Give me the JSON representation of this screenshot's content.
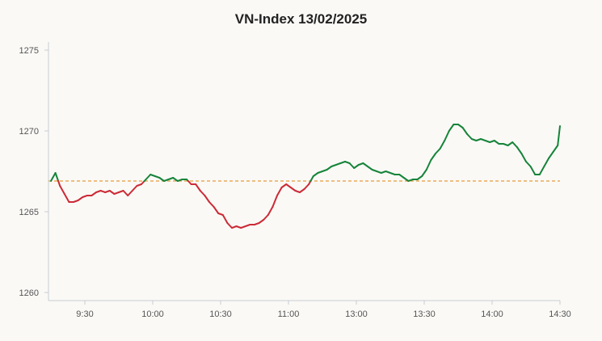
{
  "chart_data": {
    "type": "line",
    "title": "VN-Index 13/02/2025",
    "xlabel": "",
    "ylabel": "",
    "ylim": [
      1259.5,
      1275.5
    ],
    "y_ticks": [
      1260,
      1265,
      1270,
      1275
    ],
    "x_ticks": [
      "9:30",
      "10:00",
      "10:30",
      "11:00",
      "13:00",
      "13:30",
      "14:00",
      "14:30"
    ],
    "reference_value": 1266.9,
    "reference_style": "dashed",
    "colors": {
      "above": "#16843a",
      "below": "#cc2b36",
      "reference": "#e79a3a",
      "axis": "#c8cdd2"
    },
    "grid": false,
    "legend": "none",
    "x": [
      "9:15",
      "9:17",
      "9:19",
      "9:21",
      "9:23",
      "9:25",
      "9:27",
      "9:29",
      "9:31",
      "9:33",
      "9:35",
      "9:37",
      "9:39",
      "9:41",
      "9:43",
      "9:45",
      "9:47",
      "9:49",
      "9:51",
      "9:53",
      "9:55",
      "9:57",
      "9:59",
      "10:01",
      "10:03",
      "10:05",
      "10:07",
      "10:09",
      "10:11",
      "10:13",
      "10:15",
      "10:17",
      "10:19",
      "10:21",
      "10:23",
      "10:25",
      "10:27",
      "10:29",
      "10:31",
      "10:33",
      "10:35",
      "10:37",
      "10:39",
      "10:41",
      "10:43",
      "10:45",
      "10:47",
      "10:49",
      "10:51",
      "10:53",
      "10:55",
      "10:57",
      "10:59",
      "11:01",
      "11:03",
      "11:05",
      "11:07",
      "11:09",
      "11:11",
      "11:13",
      "11:15",
      "11:17",
      "11:19",
      "11:21",
      "11:23",
      "11:25",
      "11:27",
      "11:29",
      "13:01",
      "13:03",
      "13:05",
      "13:07",
      "13:09",
      "13:11",
      "13:13",
      "13:15",
      "13:17",
      "13:19",
      "13:21",
      "13:23",
      "13:25",
      "13:27",
      "13:29",
      "13:31",
      "13:33",
      "13:35",
      "13:37",
      "13:39",
      "13:41",
      "13:43",
      "13:45",
      "13:47",
      "13:49",
      "13:51",
      "13:53",
      "13:55",
      "13:57",
      "13:59",
      "14:01",
      "14:03",
      "14:05",
      "14:07",
      "14:09",
      "14:11",
      "14:13",
      "14:15",
      "14:17",
      "14:19",
      "14:21",
      "14:23",
      "14:25",
      "14:27",
      "14:29",
      "14:30"
    ],
    "series": [
      {
        "values": [
          1266.9,
          1267.4,
          1266.6,
          1266.1,
          1265.6,
          1265.6,
          1265.7,
          1265.9,
          1266.0,
          1266.0,
          1266.2,
          1266.3,
          1266.2,
          1266.3,
          1266.1,
          1266.2,
          1266.3,
          1266.0,
          1266.3,
          1266.6,
          1266.7,
          1267.0,
          1267.3,
          1267.2,
          1267.1,
          1266.9,
          1267.0,
          1267.1,
          1266.9,
          1267.0,
          1267.0,
          1266.7,
          1266.7,
          1266.3,
          1266.0,
          1265.6,
          1265.3,
          1264.9,
          1264.8,
          1264.3,
          1264.0,
          1264.1,
          1264.0,
          1264.1,
          1264.2,
          1264.2,
          1264.3,
          1264.5,
          1264.8,
          1265.3,
          1266.0,
          1266.5,
          1266.7,
          1266.5,
          1266.3,
          1266.2,
          1266.4,
          1266.7,
          1267.2,
          1267.4,
          1267.5,
          1267.6,
          1267.8,
          1267.9,
          1268.0,
          1268.1,
          1268.0,
          1267.7,
          1267.9,
          1268.0,
          1267.8,
          1267.6,
          1267.5,
          1267.4,
          1267.5,
          1267.4,
          1267.3,
          1267.3,
          1267.1,
          1266.9,
          1267.0,
          1267.0,
          1267.2,
          1267.6,
          1268.2,
          1268.6,
          1268.9,
          1269.4,
          1270.0,
          1270.4,
          1270.4,
          1270.2,
          1269.8,
          1269.5,
          1269.4,
          1269.5,
          1269.4,
          1269.3,
          1269.4,
          1269.2,
          1269.2,
          1269.1,
          1269.3,
          1269.0,
          1268.6,
          1268.1,
          1267.8,
          1267.3,
          1267.3,
          1267.8,
          1268.3,
          1268.7,
          1269.1,
          1270.3
        ]
      }
    ]
  }
}
